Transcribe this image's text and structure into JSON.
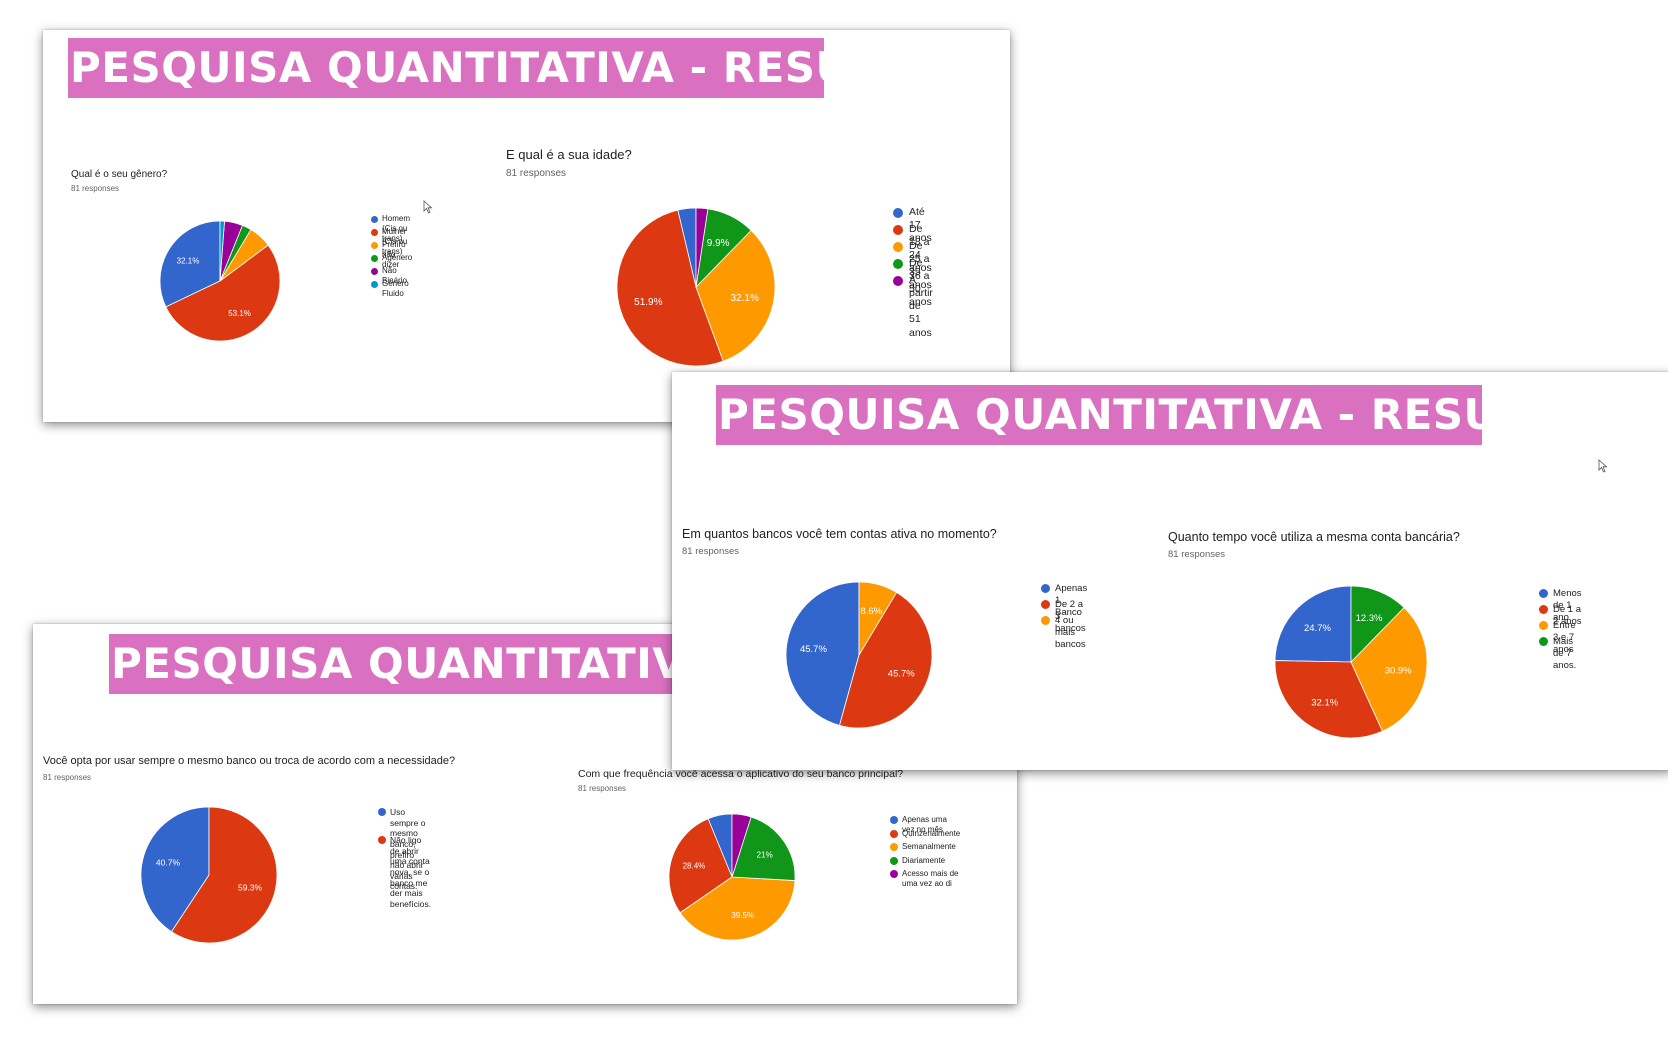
{
  "slides": [
    {
      "banner": "PESQUISA QUANTITATIVA - RESUMO"
    },
    {
      "banner": "PESQUISA QUANTITATIVA - RESUMO"
    },
    {
      "banner": "PESQUISA QUANTITATIVA - RESUMO"
    }
  ],
  "chart_data": [
    {
      "type": "pie",
      "title": "Qual é o seu gênero?",
      "subtitle": "81 responses",
      "categories": [
        "Homem (Cis ou trans)",
        "Mulher (Cis ou trans)",
        "Prefiro não dizer",
        "Agênero",
        "Não Binário",
        "Gênero Fluido"
      ],
      "values": [
        32.1,
        53.1,
        6.2,
        2.5,
        4.9,
        1.2
      ],
      "data_labels": [
        "32.1%",
        "53.1%",
        "",
        "",
        "",
        ""
      ],
      "colors": [
        "#3366cc",
        "#dc3912",
        "#ff9900",
        "#109618",
        "#990099",
        "#0099c6"
      ]
    },
    {
      "type": "pie",
      "title": "E qual é a sua idade?",
      "subtitle": "81 responses",
      "categories": [
        "Até 17 anos",
        "De 18 a 24 anos",
        "De 25 a 35 anos",
        "De 36 a 50 anos",
        "A partir de 51 anos"
      ],
      "values": [
        3.7,
        51.9,
        32.1,
        9.9,
        2.4
      ],
      "data_labels": [
        "",
        "51.9%",
        "32.1%",
        "9.9%",
        ""
      ],
      "colors": [
        "#3366cc",
        "#dc3912",
        "#ff9900",
        "#109618",
        "#990099"
      ]
    },
    {
      "type": "pie",
      "title": "Em quantos bancos você tem contas ativa no momento?",
      "subtitle": "81 responses",
      "categories": [
        "Apenas 1 Banco",
        "De 2 a 3 bancos",
        "4 ou mais bancos"
      ],
      "values": [
        45.7,
        45.7,
        8.6
      ],
      "data_labels": [
        "45.7%",
        "45.7%",
        "8.6%"
      ],
      "colors": [
        "#3366cc",
        "#dc3912",
        "#ff9900"
      ]
    },
    {
      "type": "pie",
      "title": "Quanto tempo você utiliza a mesma conta bancária?",
      "subtitle": "81 responses",
      "categories": [
        "Menos de 1 ano",
        "De 1 a 2 anos",
        "Entre 3 e 7 anos",
        "Mais de 7 anos."
      ],
      "values": [
        24.7,
        32.1,
        30.9,
        12.3
      ],
      "data_labels": [
        "24.7%",
        "32.1%",
        "30.9%",
        "12.3%"
      ],
      "colors": [
        "#3366cc",
        "#dc3912",
        "#ff9900",
        "#109618"
      ]
    },
    {
      "type": "pie",
      "title": "Você opta por usar sempre o mesmo banco ou troca de acordo com a necessidade?",
      "subtitle": "81 responses",
      "categories": [
        "Uso sempre o mesmo banco, prefiro\nnão abrir várias contas.",
        "Não ligo de abrir uma conta nova, se o\nbanco me der mais benefícios."
      ],
      "values": [
        40.7,
        59.3
      ],
      "data_labels": [
        "40.7%",
        "59.3%"
      ],
      "colors": [
        "#3366cc",
        "#dc3912"
      ]
    },
    {
      "type": "pie",
      "title": "Com que frequência você acessa o aplicativo do seu banco principal?",
      "subtitle": "81 responses",
      "categories": [
        "Apenas uma vez no mês",
        "Quinzenalmente",
        "Semanalmente",
        "Diariamente",
        "Acesso mais de uma vez ao di"
      ],
      "values": [
        6.2,
        28.4,
        39.5,
        21.0,
        4.9
      ],
      "data_labels": [
        "",
        "28.4%",
        "39.5%",
        "21%",
        ""
      ],
      "colors": [
        "#3366cc",
        "#dc3912",
        "#ff9900",
        "#109618",
        "#990099"
      ]
    }
  ]
}
